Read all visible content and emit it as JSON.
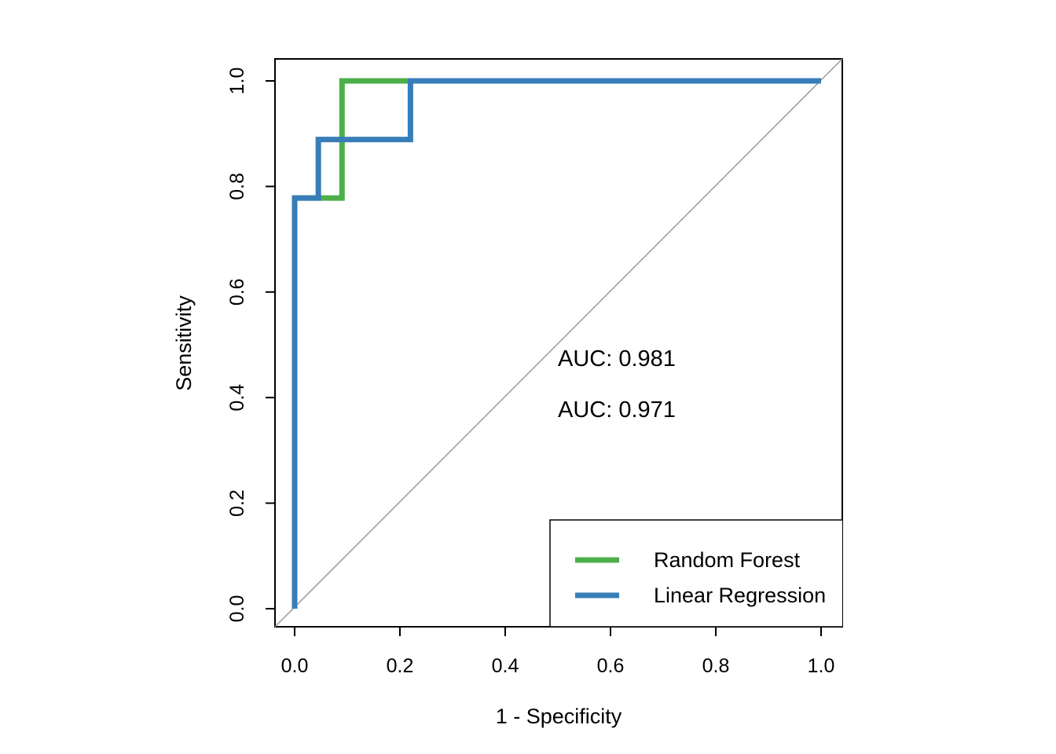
{
  "chart_data": {
    "type": "line",
    "subtype": "roc-curve",
    "title": "",
    "xlabel": "1 - Specificity",
    "ylabel": "Sensitivity",
    "xlim": [
      0,
      1
    ],
    "ylim": [
      0,
      1
    ],
    "grid": false,
    "x_ticks": [
      0,
      0.2,
      0.4,
      0.6,
      0.8,
      1.0
    ],
    "x_tick_labels": [
      "0.0",
      "0.2",
      "0.4",
      "0.6",
      "0.8",
      "1.0"
    ],
    "y_ticks": [
      0,
      0.2,
      0.4,
      0.6,
      0.8,
      1.0
    ],
    "y_tick_labels": [
      "0.0",
      "0.2",
      "0.4",
      "0.6",
      "0.8",
      "1.0"
    ],
    "series": [
      {
        "name": "Random Forest",
        "color": "#4daf4a",
        "auc": 0.981,
        "x": [
          0,
          0,
          0.09,
          0.09,
          1
        ],
        "y": [
          0,
          0.778,
          0.778,
          1,
          1
        ]
      },
      {
        "name": "Linear Regression",
        "color": "#377eb8",
        "auc": 0.971,
        "x": [
          0,
          0,
          0.045,
          0.045,
          0.22,
          0.22,
          1
        ],
        "y": [
          0,
          0.778,
          0.778,
          0.889,
          0.889,
          1,
          1
        ]
      }
    ],
    "reference_line": {
      "x": [
        0,
        1
      ],
      "y": [
        0,
        1
      ],
      "color": "#9a9a9a"
    },
    "annotations": [
      {
        "text": "AUC: 0.981",
        "color": "#4daf4a",
        "x": 0.5,
        "y": 0.46
      },
      {
        "text": "AUC: 0.971",
        "color": "#377eb8",
        "x": 0.5,
        "y": 0.363
      }
    ],
    "legend": {
      "position": "bottomright",
      "entries": [
        {
          "label": "Random Forest",
          "color": "#4daf4a"
        },
        {
          "label": "Linear Regression",
          "color": "#377eb8"
        }
      ]
    }
  }
}
